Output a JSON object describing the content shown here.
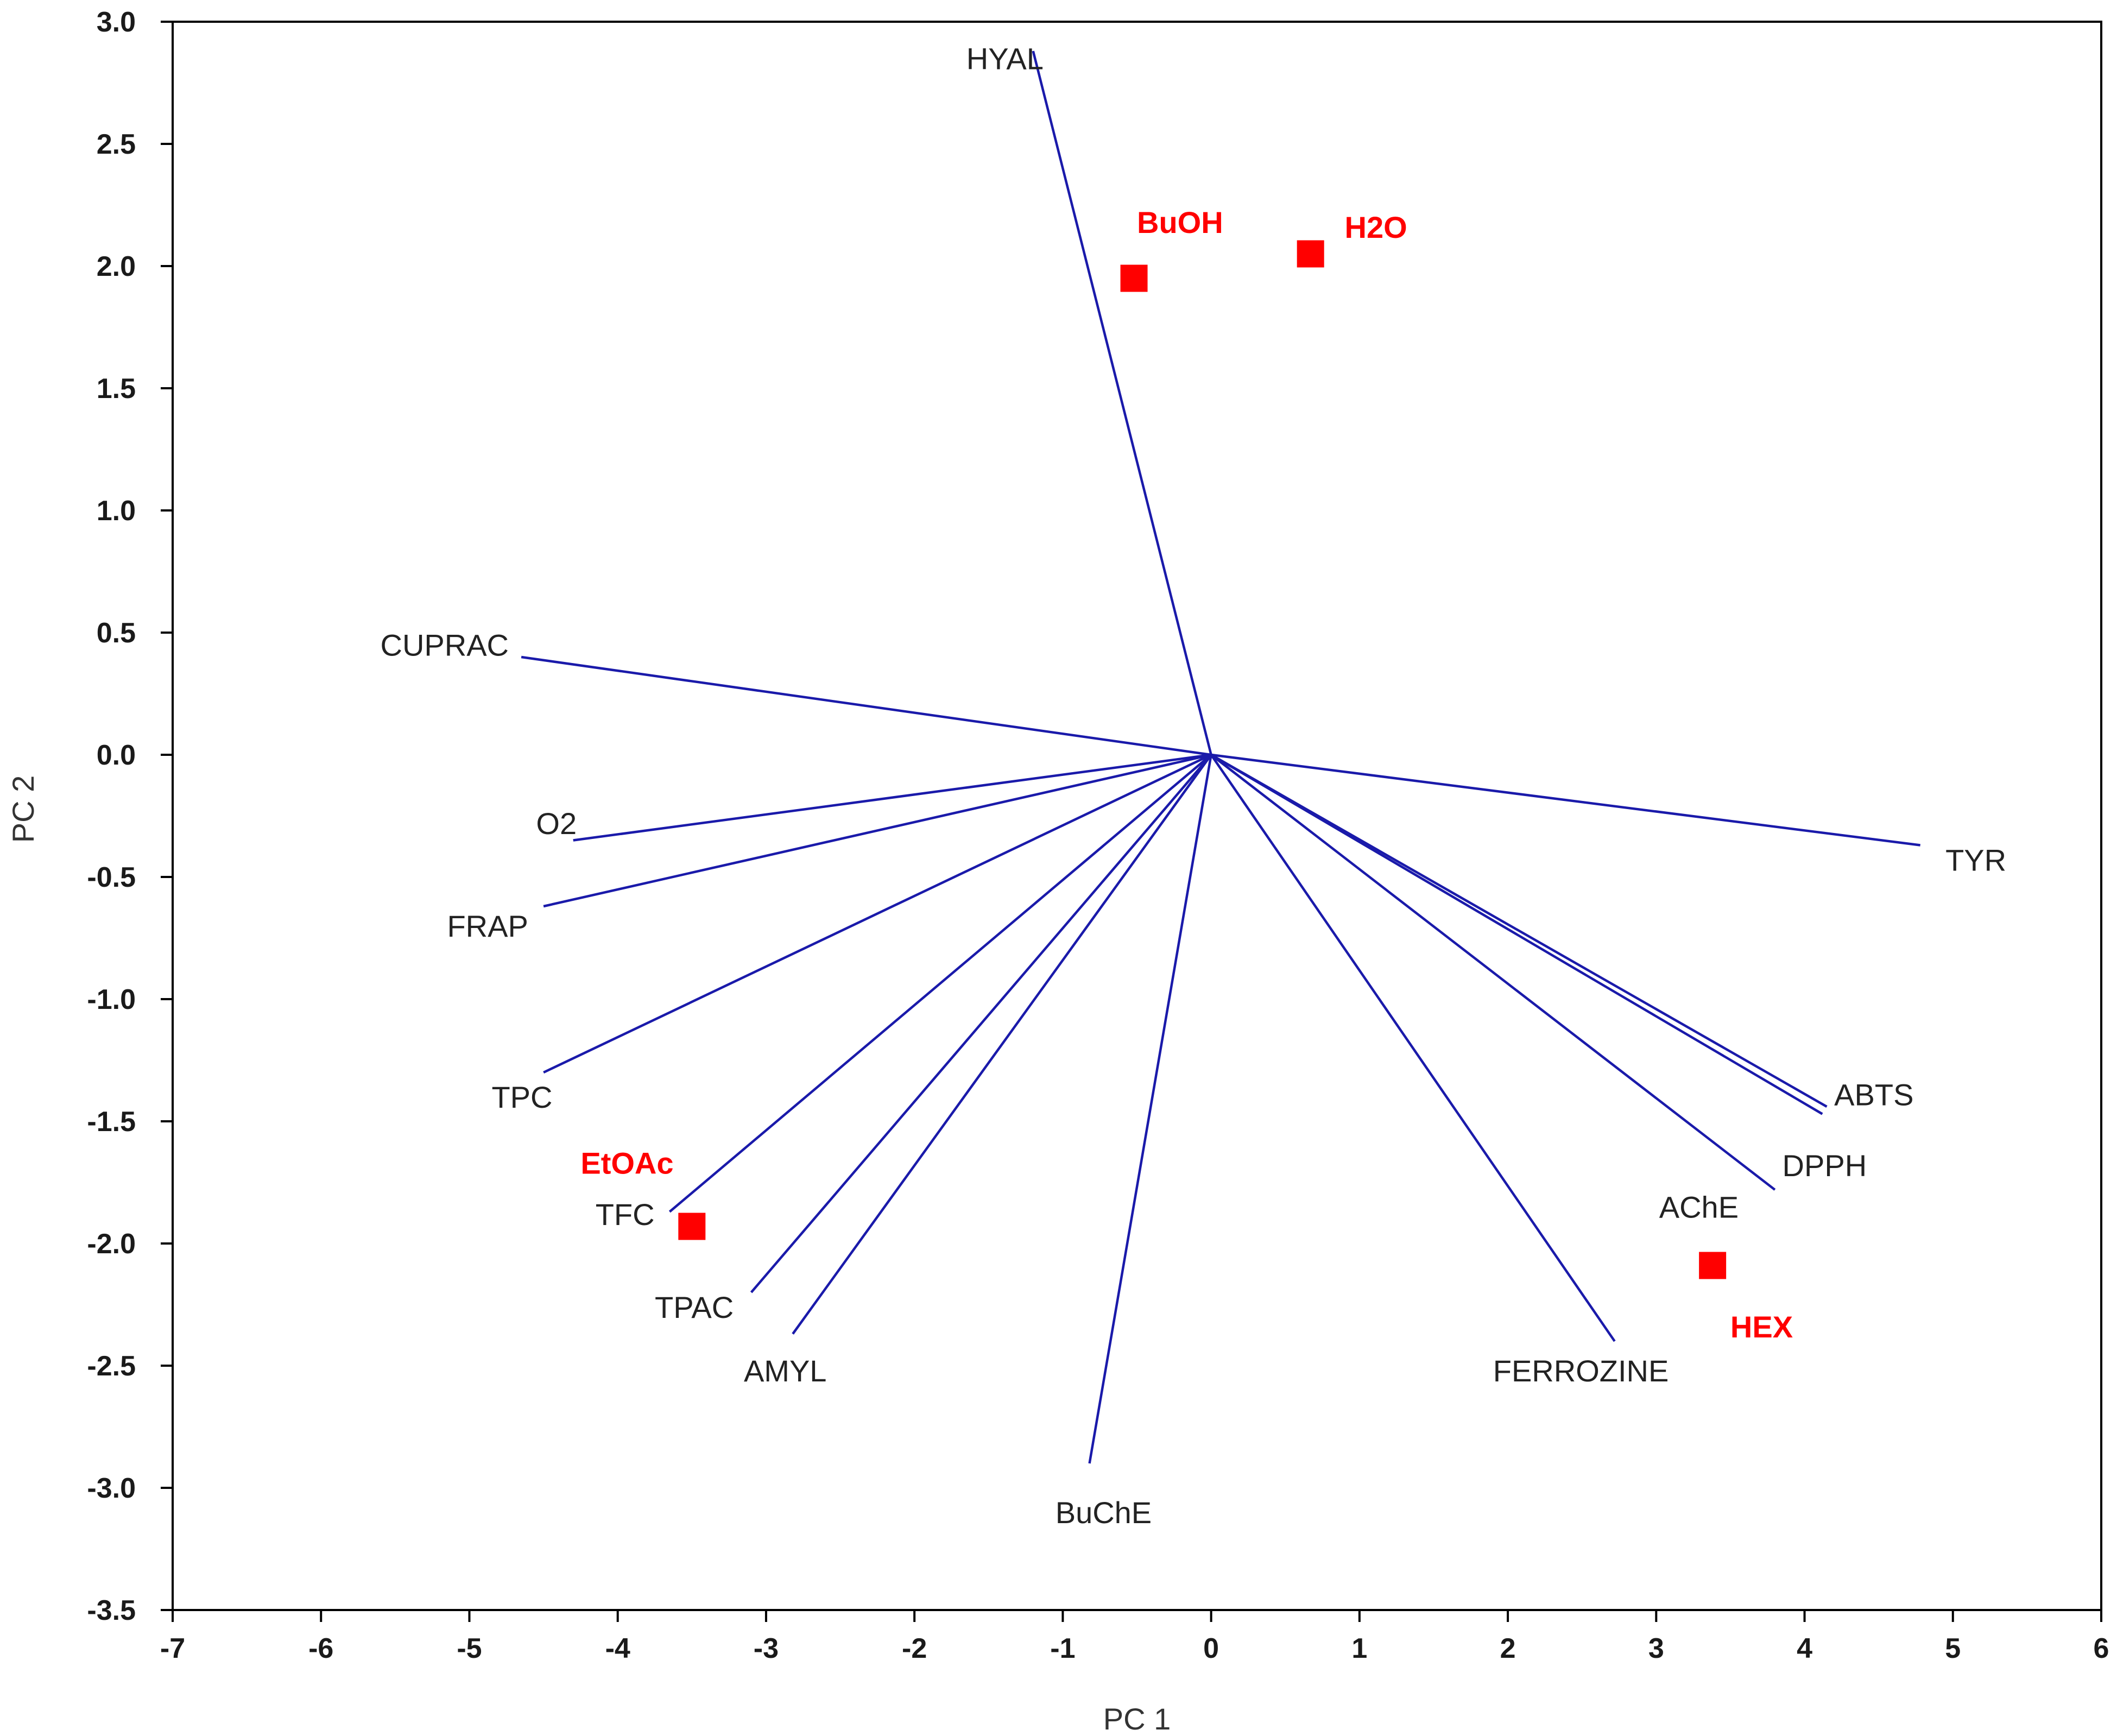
{
  "chart_data": {
    "type": "scatter",
    "subtype": "pca-biplot",
    "title": "",
    "xlabel": "PC 1",
    "ylabel": "PC 2",
    "xlim": [
      -7,
      6
    ],
    "ylim": [
      -3.5,
      3.0
    ],
    "xticks": [
      -7,
      -6,
      -5,
      -4,
      -3,
      -2,
      -1,
      0,
      1,
      2,
      3,
      4,
      5,
      6
    ],
    "yticks": [
      3.0,
      2.5,
      2.0,
      1.5,
      1.0,
      0.5,
      0.0,
      -0.5,
      -1.0,
      -1.5,
      -2.0,
      -2.5,
      -3.0,
      -3.5
    ],
    "ytick_labels": [
      "3.0",
      "2.5",
      "2.0",
      "1.5",
      "1.0",
      "0.5",
      "0.0",
      "-0.5",
      "-1.0",
      "-1.5",
      "-2.0",
      "-2.5",
      "-3.0",
      "-3.5"
    ],
    "xtick_labels": [
      "-7",
      "-6",
      "-5",
      "-4",
      "-3",
      "-2",
      "-1",
      "0",
      "1",
      "2",
      "3",
      "4",
      "5",
      "6"
    ],
    "grid": false,
    "loading_color": "#1a1aaa",
    "sample_color": "#ff0000",
    "loadings": [
      {
        "name": "HYAL",
        "x": -1.2,
        "y": 2.88,
        "label_x": -1.65,
        "label_y": 2.85
      },
      {
        "name": "CUPRAC",
        "x": -4.65,
        "y": 0.4,
        "label_x": -5.6,
        "label_y": 0.45
      },
      {
        "name": "O2",
        "x": -4.3,
        "y": -0.35,
        "label_x": -4.55,
        "label_y": -0.28
      },
      {
        "name": "FRAP",
        "x": -4.5,
        "y": -0.62,
        "label_x": -5.15,
        "label_y": -0.7
      },
      {
        "name": "TPC",
        "x": -4.5,
        "y": -1.3,
        "label_x": -4.85,
        "label_y": -1.4
      },
      {
        "name": "TFC",
        "x": -3.65,
        "y": -1.87,
        "label_x": -4.15,
        "label_y": -1.88
      },
      {
        "name": "TPAC",
        "x": -3.1,
        "y": -2.2,
        "label_x": -3.75,
        "label_y": -2.26
      },
      {
        "name": "AMYL",
        "x": -2.82,
        "y": -2.37,
        "label_x": -3.15,
        "label_y": -2.52
      },
      {
        "name": "BuChE",
        "x": -0.82,
        "y": -2.9,
        "label_x": -1.05,
        "label_y": -3.1
      },
      {
        "name": "FERROZINE",
        "x": 2.72,
        "y": -2.4,
        "label_x": 1.9,
        "label_y": -2.52
      },
      {
        "name": "AChE",
        "x": 3.8,
        "y": -1.78,
        "label_x": 3.02,
        "label_y": -1.85
      },
      {
        "name": "DPPH",
        "x": 4.12,
        "y": -1.47,
        "label_x": 3.85,
        "label_y": -1.68
      },
      {
        "name": "ABTS",
        "x": 4.15,
        "y": -1.44,
        "label_x": 4.2,
        "label_y": -1.39
      },
      {
        "name": "TYR",
        "x": 4.78,
        "y": -0.37,
        "label_x": 4.95,
        "label_y": -0.43
      }
    ],
    "samples": [
      {
        "name": "BuOH",
        "x": -0.52,
        "y": 1.95,
        "label_x": -0.5,
        "label_y": 2.18
      },
      {
        "name": "H2O",
        "x": 0.67,
        "y": 2.05,
        "label_x": 0.9,
        "label_y": 2.16
      },
      {
        "name": "EtOAc",
        "x": -3.5,
        "y": -1.93,
        "label_x": -4.25,
        "label_y": -1.67
      },
      {
        "name": "HEX",
        "x": 3.38,
        "y": -2.09,
        "label_x": 3.5,
        "label_y": -2.34
      }
    ]
  }
}
